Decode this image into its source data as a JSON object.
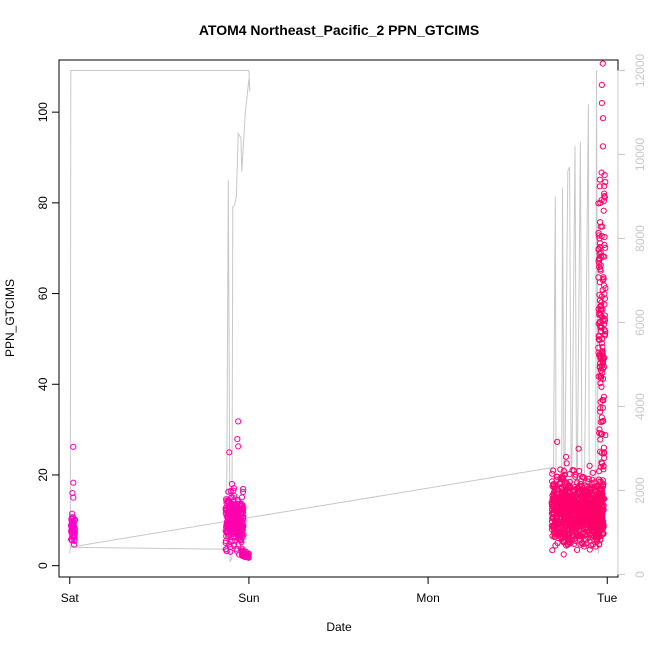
{
  "chart_data": {
    "type": "scatter",
    "title": "ATOM4 Northeast_Pacific_2 PPN_GTCIMS",
    "xlabel": "Date",
    "ylabel": "PPN_GTCIMS",
    "y2label": "",
    "x_ticks": [
      {
        "value": 0,
        "label": "Sat"
      },
      {
        "value": 1,
        "label": "Sun"
      },
      {
        "value": 2,
        "label": "Mon"
      },
      {
        "value": 3,
        "label": "Tue"
      }
    ],
    "xlim": [
      -0.06,
      3.06
    ],
    "ylim": [
      -2.5,
      111.5
    ],
    "y_ticks": [
      0,
      20,
      40,
      60,
      80,
      100
    ],
    "y2lim": [
      -60,
      12250
    ],
    "y2_ticks": [
      0,
      2000,
      4000,
      6000,
      8000,
      10000,
      12000
    ],
    "grid": false,
    "colors": {
      "points_early": "#ff00cc",
      "points_late": "#ff0066",
      "altitude_line": "#c8c8c8",
      "axis": "#000000",
      "right_axis": "#c8c8c8"
    },
    "series": [
      {
        "kind": "points",
        "segments": [
          {
            "x_range": [
              0.005,
              0.03
            ],
            "y_center": 8,
            "y_spread": 2.5,
            "n": 55,
            "outliers": [
              [
                0.02,
                26.2
              ],
              [
                0.02,
                18.3
              ],
              [
                0.015,
                16
              ],
              [
                0.02,
                15
              ]
            ]
          },
          {
            "x_range": [
              0.87,
              0.97
            ],
            "y_center": 10,
            "y_spread": 5,
            "n": 260,
            "outliers": [
              [
                0.94,
                31.8
              ],
              [
                0.935,
                27.9
              ],
              [
                0.94,
                26.3
              ],
              [
                0.89,
                25
              ]
            ]
          },
          {
            "x_range": [
              0.96,
              1.0
            ],
            "y_center": 2.5,
            "y_spread": 0.8,
            "n": 30,
            "outliers": []
          },
          {
            "x_range": [
              2.69,
              2.98
            ],
            "y_center": 12,
            "y_spread": 6,
            "n": 900,
            "outliers": [
              [
                2.72,
                27.3
              ],
              [
                2.84,
                25.8
              ],
              [
                2.77,
                24
              ]
            ]
          },
          {
            "x_range": [
              2.95,
              2.99
            ],
            "y_center": 55,
            "y_spread": 30,
            "n": 160,
            "outliers": [
              [
                2.975,
                110.7
              ],
              [
                2.97,
                106
              ],
              [
                2.97,
                102
              ]
            ]
          }
        ]
      },
      {
        "kind": "line",
        "axis": "right",
        "points": [
          [
            0.0,
            500
          ],
          [
            0.003,
            600
          ],
          [
            0.006,
            12000
          ],
          [
            1.0,
            12000
          ],
          [
            1.005,
            11500
          ],
          [
            1.0,
            11800
          ],
          [
            0.98,
            11000
          ],
          [
            0.96,
            9600
          ],
          [
            0.955,
            10400
          ],
          [
            0.94,
            10500
          ],
          [
            0.93,
            9000
          ],
          [
            0.92,
            8800
          ],
          [
            0.91,
            8750
          ],
          [
            0.905,
            400
          ],
          [
            0.895,
            300
          ],
          [
            0.885,
            9400
          ],
          [
            0.875,
            800
          ],
          [
            0.87,
            600
          ],
          [
            0.0,
            650
          ],
          [
            2.7,
            2550
          ],
          [
            2.71,
            9000
          ],
          [
            2.715,
            1000
          ],
          [
            2.745,
            1100
          ],
          [
            2.75,
            9200
          ],
          [
            2.76,
            900
          ],
          [
            2.78,
            9600
          ],
          [
            2.79,
            9700
          ],
          [
            2.8,
            1200
          ],
          [
            2.82,
            10200
          ],
          [
            2.83,
            1000
          ],
          [
            2.85,
            10300
          ],
          [
            2.86,
            900
          ],
          [
            2.87,
            1100
          ],
          [
            2.895,
            11200
          ],
          [
            2.9,
            800
          ],
          [
            2.91,
            1300
          ],
          [
            2.935,
            900
          ],
          [
            2.94,
            12000
          ],
          [
            2.95,
            500
          ],
          [
            2.97,
            1000
          ],
          [
            2.98,
            1200
          ]
        ]
      }
    ]
  }
}
